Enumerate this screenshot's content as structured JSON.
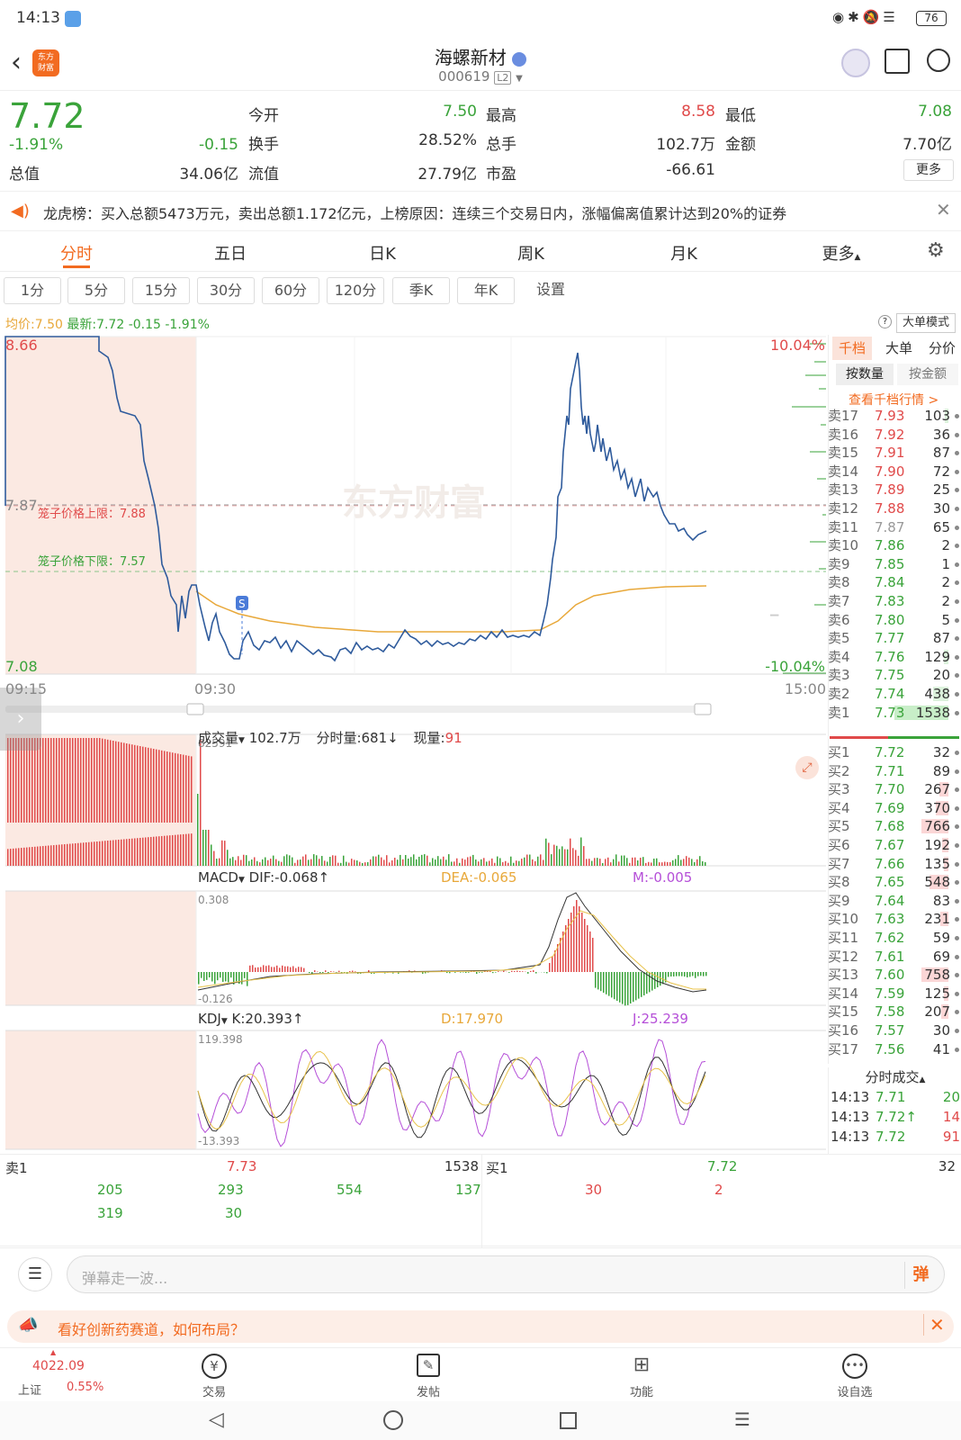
{
  "status_bar": {
    "time": "14:13",
    "battery": "76"
  },
  "header": {
    "title": "海螺新材",
    "code": "000619",
    "level": "L2",
    "logo_text": "东方\n财富"
  },
  "quote": {
    "price": "7.72",
    "pct": "-1.91%",
    "change": "-0.15",
    "labels": {
      "open": "今开",
      "high": "最高",
      "low": "最低",
      "turnover": "换手",
      "volume": "总手",
      "amount": "金额",
      "mcap": "总值",
      "float": "流值",
      "pe": "市盈"
    },
    "values": {
      "open": "7.50",
      "high": "8.58",
      "low": "7.08",
      "turnover": "28.52%",
      "volume": "102.7万",
      "amount": "7.70亿",
      "mcap": "34.06亿",
      "float": "27.79亿",
      "pe": "-66.61"
    },
    "more": "更多"
  },
  "notice": {
    "text": "龙虎榜：买入总额5473万元，卖出总额1.172亿元，上榜原因：连续三个交易日内，涨幅偏离值累计达到20%的证券"
  },
  "tabs": [
    "分时",
    "五日",
    "日K",
    "周K",
    "月K",
    "更多"
  ],
  "periods": [
    "1分",
    "5分",
    "15分",
    "30分",
    "60分",
    "120分",
    "季K",
    "年K",
    "设置"
  ],
  "chart_header": {
    "avg_label": "均价:",
    "avg": "7.50",
    "latest_label": "最新:",
    "latest": "7.72",
    "change": "-0.15",
    "pct": "-1.91%",
    "mode": "大单模式"
  },
  "chart_labels": {
    "top": "8.66",
    "mid": "7.87",
    "bottom": "7.08",
    "top_pct": "10.04%",
    "bottom_pct": "-10.04%",
    "t_start": "09:15",
    "t_open": "09:30",
    "t_end": "15:00",
    "cage_up": "笼子价格上限：7.88",
    "cage_down": "笼子价格下限：7.57",
    "marker": "S",
    "watermark": "东方财富"
  },
  "volume_panel": {
    "label": "成交量",
    "total": "102.7万",
    "tick_label": "分时量:681",
    "now_label": "现量:",
    "now": "91",
    "max": "82591"
  },
  "macd_panel": {
    "label": "MACD",
    "dif": "DIF:-0.068",
    "dea": "DEA:-0.065",
    "m": "M:-0.005",
    "max": "0.308",
    "min": "-0.126"
  },
  "kdj_panel": {
    "label": "KDJ",
    "k": "K:20.393",
    "d": "D:17.970",
    "j": "J:25.239",
    "max": "119.398",
    "min": "-13.393"
  },
  "book_tabs": {
    "a": "千档",
    "b": "大单",
    "c": "分价",
    "sub_a": "按数量",
    "sub_b": "按金额",
    "link": "查看千档行情 >"
  },
  "asks": [
    [
      "卖17",
      "7.93",
      "103"
    ],
    [
      "卖16",
      "7.92",
      "36"
    ],
    [
      "卖15",
      "7.91",
      "87"
    ],
    [
      "卖14",
      "7.90",
      "72"
    ],
    [
      "卖13",
      "7.89",
      "25"
    ],
    [
      "卖12",
      "7.88",
      "30"
    ],
    [
      "卖11",
      "7.87",
      "65"
    ],
    [
      "卖10",
      "7.86",
      "2"
    ],
    [
      "卖9",
      "7.85",
      "1"
    ],
    [
      "卖8",
      "7.84",
      "2"
    ],
    [
      "卖7",
      "7.83",
      "2"
    ],
    [
      "卖6",
      "7.80",
      "5"
    ],
    [
      "卖5",
      "7.77",
      "87"
    ],
    [
      "卖4",
      "7.76",
      "129"
    ],
    [
      "卖3",
      "7.75",
      "20"
    ],
    [
      "卖2",
      "7.74",
      "438"
    ],
    [
      "卖1",
      "7.73",
      "1538"
    ]
  ],
  "bids": [
    [
      "买1",
      "7.72",
      "32"
    ],
    [
      "买2",
      "7.71",
      "89"
    ],
    [
      "买3",
      "7.70",
      "267"
    ],
    [
      "买4",
      "7.69",
      "370"
    ],
    [
      "买5",
      "7.68",
      "766"
    ],
    [
      "买6",
      "7.67",
      "192"
    ],
    [
      "买7",
      "7.66",
      "135"
    ],
    [
      "买8",
      "7.65",
      "548"
    ],
    [
      "买9",
      "7.64",
      "83"
    ],
    [
      "买10",
      "7.63",
      "231"
    ],
    [
      "买11",
      "7.62",
      "59"
    ],
    [
      "买12",
      "7.61",
      "69"
    ],
    [
      "买13",
      "7.60",
      "758"
    ],
    [
      "买14",
      "7.59",
      "125"
    ],
    [
      "买15",
      "7.58",
      "207"
    ],
    [
      "买16",
      "7.57",
      "30"
    ],
    [
      "买17",
      "7.56",
      "41"
    ]
  ],
  "ticks_title": "分时成交",
  "ticks": [
    [
      "14:13",
      "7.71",
      "20"
    ],
    [
      "14:13",
      "7.72↑",
      "14"
    ],
    [
      "14:13",
      "7.72",
      "91"
    ]
  ],
  "bottom_quote": {
    "sell_label": "卖1",
    "sell_price": "7.73",
    "sell_qty": "1538",
    "buy_label": "买1",
    "buy_price": "7.72",
    "buy_qty": "32",
    "sell_orders": [
      "205",
      "293",
      "554",
      "137",
      "319",
      "30"
    ],
    "buy_orders": [
      "30",
      "2"
    ]
  },
  "comment": {
    "placeholder": "弹幕走一波...",
    "send": "弹"
  },
  "promo": {
    "text": "看好创新药赛道，如何布局？"
  },
  "nav": {
    "index_value": "4022.09",
    "index_name": "上证",
    "index_pct": "0.55%",
    "trade": "交易",
    "post": "发帖",
    "func": "功能",
    "watch": "设自选"
  },
  "colors": {
    "up": "#e04a4a",
    "down": "#3aa33a",
    "accent": "#f26b21",
    "line": "#2f5b9c",
    "avg": "#e8a83a"
  }
}
